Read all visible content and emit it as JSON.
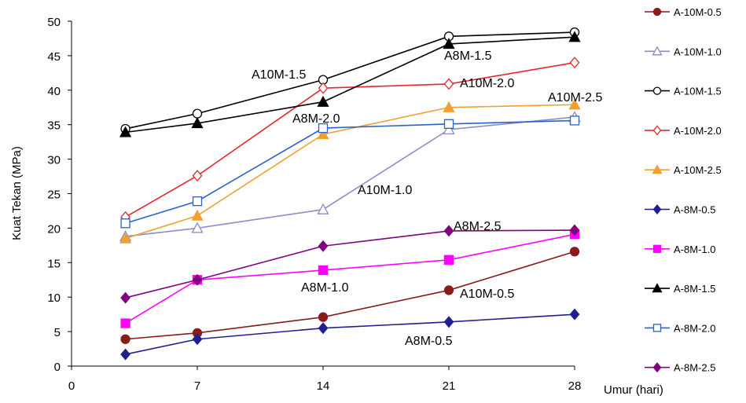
{
  "chart_data": {
    "type": "line",
    "y_label": "Kuat Tekan (MPa)",
    "x_label": "Umur (hari)",
    "x": [
      3,
      7,
      14,
      21,
      28
    ],
    "xlim": [
      0,
      28
    ],
    "xticks": [
      0,
      7,
      14,
      21,
      28
    ],
    "ylim": [
      0,
      50
    ],
    "yticks": [
      0,
      5,
      10,
      15,
      20,
      25,
      30,
      35,
      40,
      45,
      50
    ],
    "legend": "right",
    "series": [
      {
        "name": "A-10M-0.5",
        "color": "#8b1a1a",
        "marker": "circle",
        "filled": true,
        "values": [
          3.9,
          4.8,
          7.1,
          11.0,
          16.6
        ]
      },
      {
        "name": "A-10M-1.0",
        "color": "#8c8cc8",
        "marker": "triangle",
        "filled": false,
        "values": [
          18.8,
          20.0,
          22.7,
          34.3,
          36.1
        ]
      },
      {
        "name": "A-10M-1.5",
        "color": "#000000",
        "marker": "circle",
        "filled": false,
        "values": [
          34.4,
          36.6,
          41.5,
          47.8,
          48.4
        ]
      },
      {
        "name": "A-10M-2.0",
        "color": "#e8262b",
        "marker": "diamond",
        "filled": false,
        "values": [
          21.6,
          27.6,
          40.3,
          40.9,
          44.0
        ]
      },
      {
        "name": "A-10M-2.5",
        "color": "#f0a030",
        "marker": "triangle",
        "filled": true,
        "values": [
          18.5,
          21.8,
          33.6,
          37.5,
          37.9
        ]
      },
      {
        "name": "A-8M-0.5",
        "color": "#1f1f8f",
        "marker": "diamond",
        "filled": true,
        "values": [
          1.7,
          3.9,
          5.5,
          6.4,
          7.5
        ]
      },
      {
        "name": "A-8M-1.0",
        "color": "#ff00ff",
        "marker": "square",
        "filled": true,
        "values": [
          6.2,
          12.5,
          13.9,
          15.4,
          19.1
        ]
      },
      {
        "name": "A-8M-1.5",
        "color": "#000000",
        "marker": "triangle",
        "filled": true,
        "values": [
          33.9,
          35.2,
          38.3,
          46.7,
          47.7
        ]
      },
      {
        "name": "A-8M-2.0",
        "color": "#2a62c9",
        "marker": "square",
        "filled": false,
        "values": [
          20.7,
          23.9,
          34.5,
          35.1,
          35.6
        ]
      },
      {
        "name": "A-8M-2.5",
        "color": "#800080",
        "marker": "diamond",
        "filled": true,
        "values": [
          9.9,
          12.5,
          17.4,
          19.6,
          19.7
        ]
      }
    ],
    "annotations": [
      "A10M-1.5",
      "A8M-1.5",
      "A10M-2.0",
      "A10M-2.5",
      "A8M-2.0",
      "A10M-1.0",
      "A8M-2.5",
      "A8M-1.0",
      "A10M-0.5",
      "A8M-0.5"
    ]
  }
}
